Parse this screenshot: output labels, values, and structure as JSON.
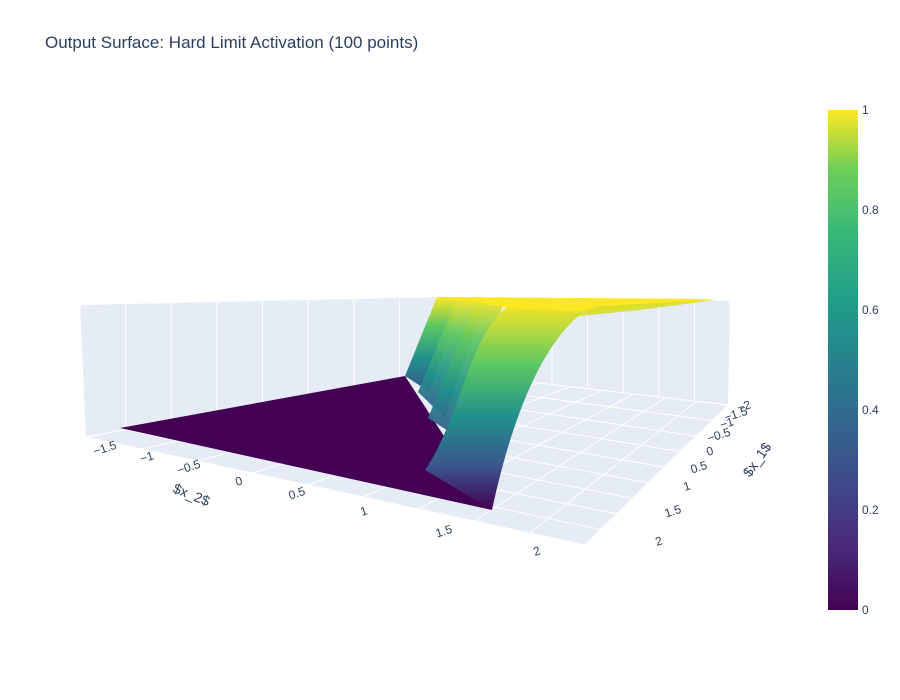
{
  "chart_data": {
    "type": "surface",
    "title": "Output Surface: Hard Limit Activation (100 points)",
    "x1_label": "$x_1$",
    "x2_label": "$x_2$",
    "x1_ticks": [
      "−2",
      "−1.5",
      "−1",
      "−0.5",
      "0",
      "0.5",
      "1",
      "1.5",
      "2"
    ],
    "x2_ticks": [
      "−1.5",
      "−1",
      "−0.5",
      "0",
      "0.5",
      "1",
      "1.5",
      "2"
    ],
    "x1_range": [
      -2,
      2.2
    ],
    "x2_range": [
      -1.7,
      2.2
    ],
    "z_range": [
      0,
      1
    ],
    "colorscale": "Viridis",
    "colorbar": {
      "ticks": [
        "0",
        "0.2",
        "0.4",
        "0.6",
        "0.8",
        "1"
      ],
      "values": [
        0,
        0.2,
        0.4,
        0.6,
        0.8,
        1
      ]
    },
    "surface_shape": "step: z = 0 for x2 below ~1.3 (with a ridge band near x2 ≈ 1.3–1.5 for x1 < 0), rising smoothly to z = 1 for larger x2",
    "grid": "on"
  }
}
